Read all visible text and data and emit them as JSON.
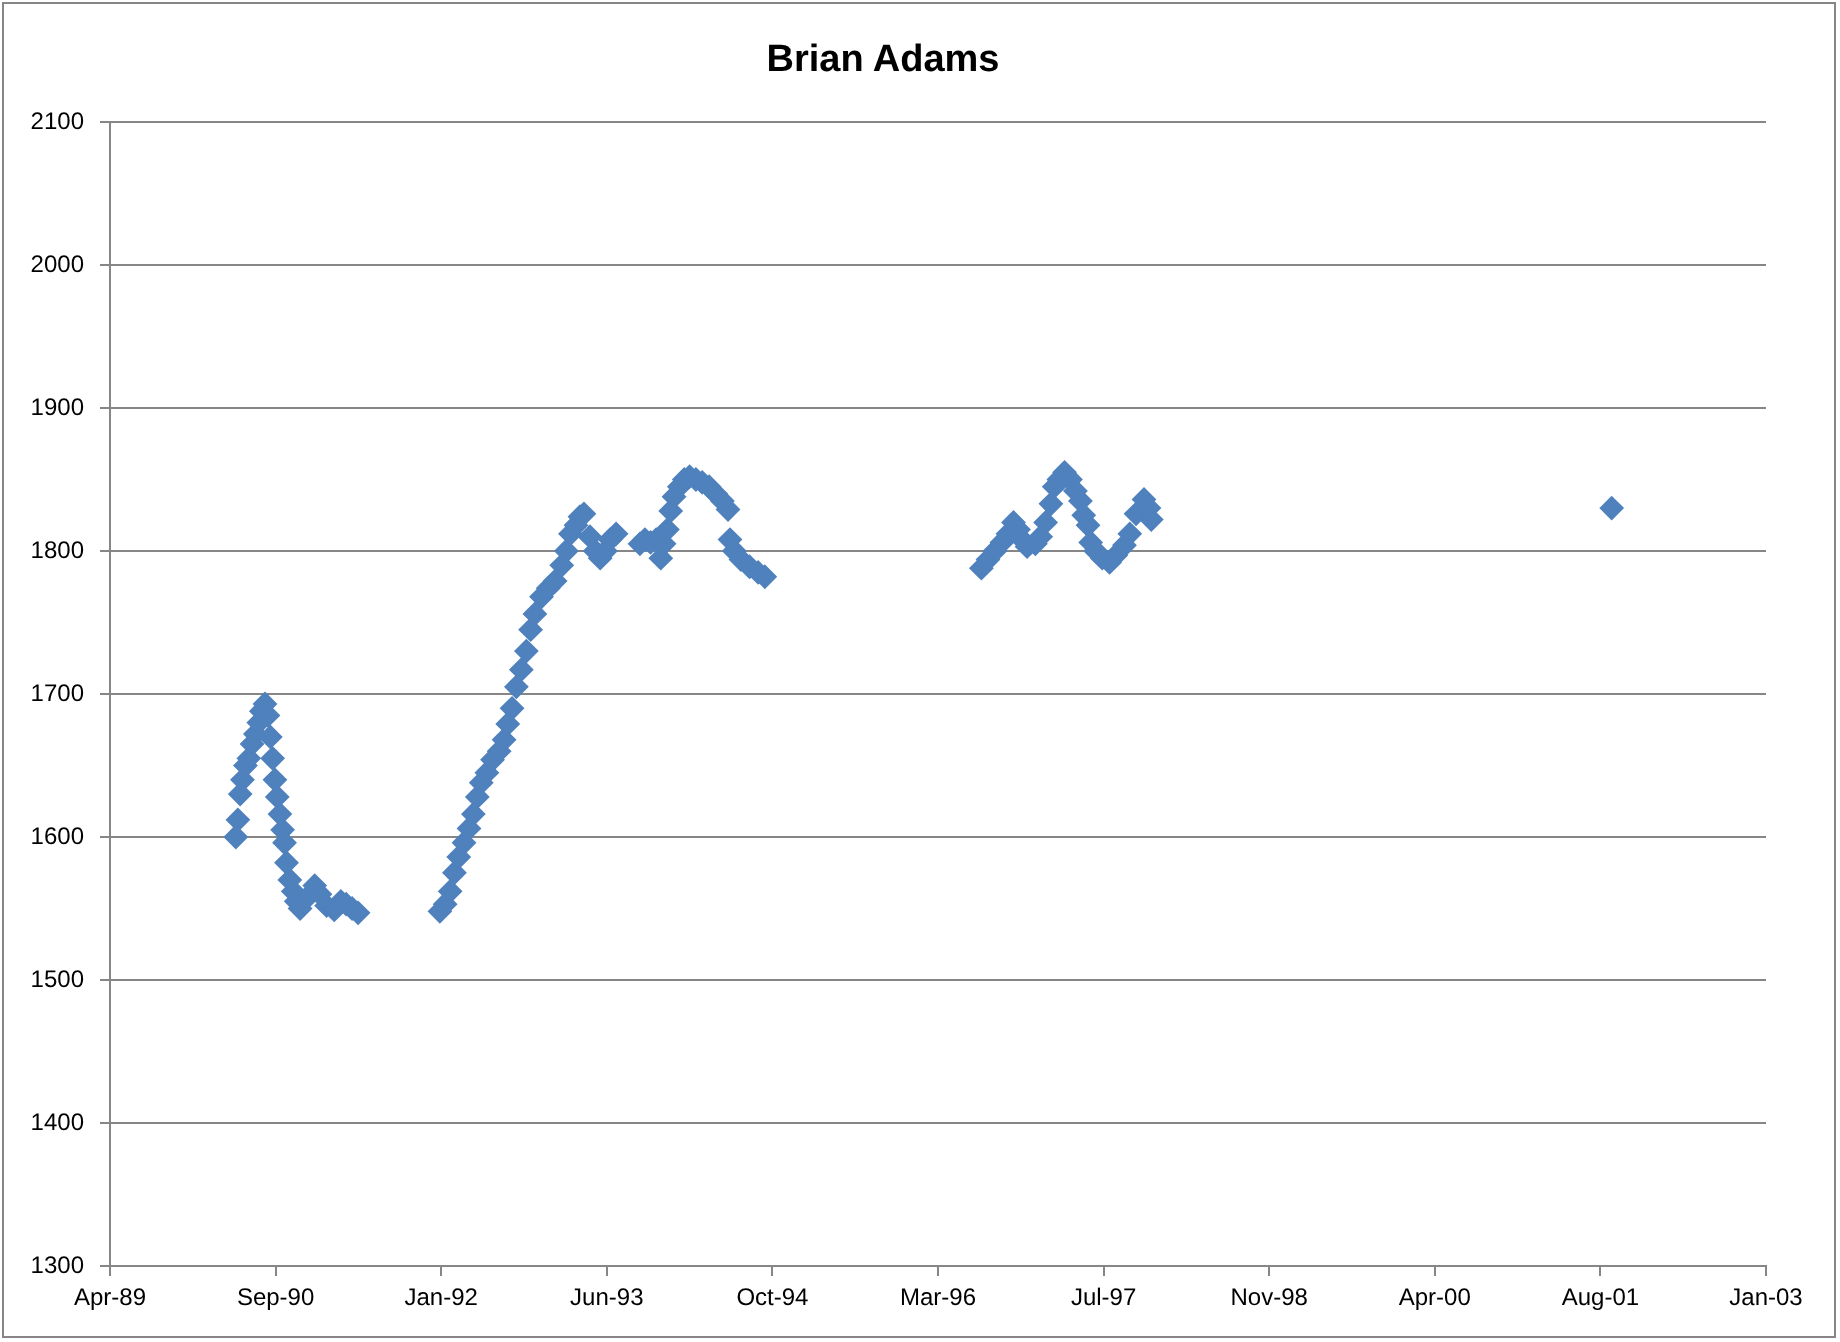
{
  "chart_data": {
    "type": "scatter",
    "title": "Brian Adams",
    "color": "#4f81bd",
    "marker": "diamond",
    "grid": "y",
    "x": [
      "1990-05-12",
      "1990-05-18",
      "1990-05-25",
      "1990-06-01",
      "1990-06-10",
      "1990-06-20",
      "1990-06-30",
      "1990-07-10",
      "1990-07-20",
      "1990-07-28",
      "1990-08-08",
      "1990-08-17",
      "1990-08-24",
      "1990-08-31",
      "1990-09-07",
      "1990-09-14",
      "1990-09-22",
      "1990-09-30",
      "1990-10-06",
      "1990-10-12",
      "1990-10-22",
      "1990-11-01",
      "1990-11-10",
      "1990-11-22",
      "1990-12-10",
      "1991-01-05",
      "1991-01-21",
      "1991-02-10",
      "1991-03-05",
      "1991-03-25",
      "1991-04-10",
      "1991-04-28",
      "1991-05-16",
      "1992-01-18",
      "1992-02-03",
      "1992-02-18",
      "1992-03-02",
      "1992-03-15",
      "1992-03-31",
      "1992-04-15",
      "1992-04-28",
      "1992-05-10",
      "1992-05-22",
      "1992-06-08",
      "1992-06-25",
      "1992-07-15",
      "1992-07-30",
      "1992-08-10",
      "1992-08-23",
      "1992-09-05",
      "1992-09-20",
      "1992-10-05",
      "1992-10-18",
      "1992-10-31",
      "1992-11-20",
      "1992-12-10",
      "1992-12-31",
      "1993-01-20",
      "1993-02-03",
      "1993-02-15",
      "1993-03-04",
      "1993-03-16",
      "1993-03-28",
      "1993-04-15",
      "1993-05-01",
      "1993-05-16",
      "1993-06-01",
      "1993-06-15",
      "1993-07-03",
      "1993-09-13",
      "1993-09-28",
      "1993-10-15",
      "1993-11-01",
      "1993-11-15",
      "1993-11-25",
      "1993-12-05",
      "1993-12-15",
      "1993-12-25",
      "1994-01-10",
      "1994-01-25",
      "1994-02-10",
      "1994-03-01",
      "1994-03-20",
      "1994-04-10",
      "1994-04-30",
      "1994-05-20",
      "1994-06-06",
      "1994-06-12",
      "1994-06-25",
      "1994-07-15",
      "1994-08-10",
      "1994-09-05",
      "1994-09-25",
      "1996-07-10",
      "1996-07-30",
      "1996-08-20",
      "1996-09-10",
      "1996-09-28",
      "1996-10-15",
      "1996-10-30",
      "1996-11-10",
      "1996-11-25",
      "1996-12-20",
      "1997-01-05",
      "1997-01-20",
      "1997-02-05",
      "1997-02-15",
      "1997-03-01",
      "1997-03-18",
      "1997-04-05",
      "1997-04-20",
      "1997-05-05",
      "1997-05-15",
      "1997-05-28",
      "1997-06-05",
      "1997-06-20",
      "1997-07-10",
      "1997-08-01",
      "1997-08-20",
      "1997-09-15",
      "1997-10-01",
      "1997-10-20",
      "1997-11-13",
      "1997-11-28",
      "1997-12-05",
      "2001-09-25"
    ],
    "values": [
      1600,
      1612,
      1630,
      1640,
      1650,
      1655,
      1665,
      1672,
      1680,
      1688,
      1693,
      1685,
      1670,
      1655,
      1640,
      1628,
      1616,
      1605,
      1596,
      1582,
      1570,
      1562,
      1555,
      1550,
      1557,
      1566,
      1560,
      1552,
      1549,
      1555,
      1553,
      1550,
      1547,
      1548,
      1553,
      1562,
      1575,
      1586,
      1596,
      1606,
      1616,
      1628,
      1638,
      1645,
      1654,
      1660,
      1668,
      1679,
      1690,
      1705,
      1717,
      1730,
      1745,
      1756,
      1768,
      1774,
      1779,
      1790,
      1800,
      1812,
      1818,
      1824,
      1826,
      1810,
      1800,
      1795,
      1800,
      1808,
      1812,
      1805,
      1808,
      1806,
      1808,
      1795,
      1805,
      1815,
      1828,
      1838,
      1845,
      1850,
      1852,
      1850,
      1848,
      1845,
      1840,
      1835,
      1829,
      1808,
      1800,
      1794,
      1789,
      1785,
      1782,
      1788,
      1794,
      1800,
      1806,
      1812,
      1820,
      1815,
      1808,
      1803,
      1805,
      1810,
      1820,
      1833,
      1845,
      1850,
      1855,
      1850,
      1842,
      1835,
      1825,
      1818,
      1806,
      1800,
      1795,
      1792,
      1797,
      1804,
      1812,
      1826,
      1836,
      1830,
      1822,
      1830
    ],
    "xlim": [
      "1989-04-27",
      "2003-01-04"
    ],
    "xticks": [
      {
        "value": "1989-04-27",
        "label": "Apr-89"
      },
      {
        "value": "1990-09-09",
        "label": "Sep-90"
      },
      {
        "value": "1992-01-22",
        "label": "Jan-92"
      },
      {
        "value": "1993-06-05",
        "label": "Jun-93"
      },
      {
        "value": "1994-10-18",
        "label": "Oct-94"
      },
      {
        "value": "1996-03-01",
        "label": "Mar-96"
      },
      {
        "value": "1997-07-14",
        "label": "Jul-97"
      },
      {
        "value": "1998-11-26",
        "label": "Nov-98"
      },
      {
        "value": "2000-04-09",
        "label": "Apr-00"
      },
      {
        "value": "2001-08-22",
        "label": "Aug-01"
      },
      {
        "value": "2003-01-04",
        "label": "Jan-03"
      }
    ],
    "ylim": [
      1300,
      2100
    ],
    "yticks": [
      1300,
      1400,
      1500,
      1600,
      1700,
      1800,
      1900,
      2000,
      2100
    ]
  }
}
